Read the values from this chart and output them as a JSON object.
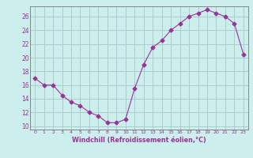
{
  "x": [
    0,
    1,
    2,
    3,
    4,
    5,
    6,
    7,
    8,
    9,
    10,
    11,
    12,
    13,
    14,
    15,
    16,
    17,
    18,
    19,
    20,
    21,
    22,
    23
  ],
  "y": [
    17,
    16,
    16,
    14.5,
    13.5,
    13,
    12,
    11.5,
    10.5,
    10.5,
    11,
    15.5,
    19,
    21.5,
    22.5,
    24,
    25,
    26,
    26.5,
    27,
    26.5,
    26,
    25,
    20.5
  ],
  "line_color": "#993399",
  "marker": "D",
  "marker_size": 2.5,
  "bg_color": "#cceeed",
  "grid_color": "#aacccc",
  "xlabel": "Windchill (Refroidissement éolien,°C)",
  "xlabel_color": "#993399",
  "tick_color": "#993399",
  "ylim": [
    9.5,
    27.5
  ],
  "xlim": [
    -0.5,
    23.5
  ],
  "yticks": [
    10,
    12,
    14,
    16,
    18,
    20,
    22,
    24,
    26
  ],
  "xticks": [
    0,
    1,
    2,
    3,
    4,
    5,
    6,
    7,
    8,
    9,
    10,
    11,
    12,
    13,
    14,
    15,
    16,
    17,
    18,
    19,
    20,
    21,
    22,
    23
  ]
}
